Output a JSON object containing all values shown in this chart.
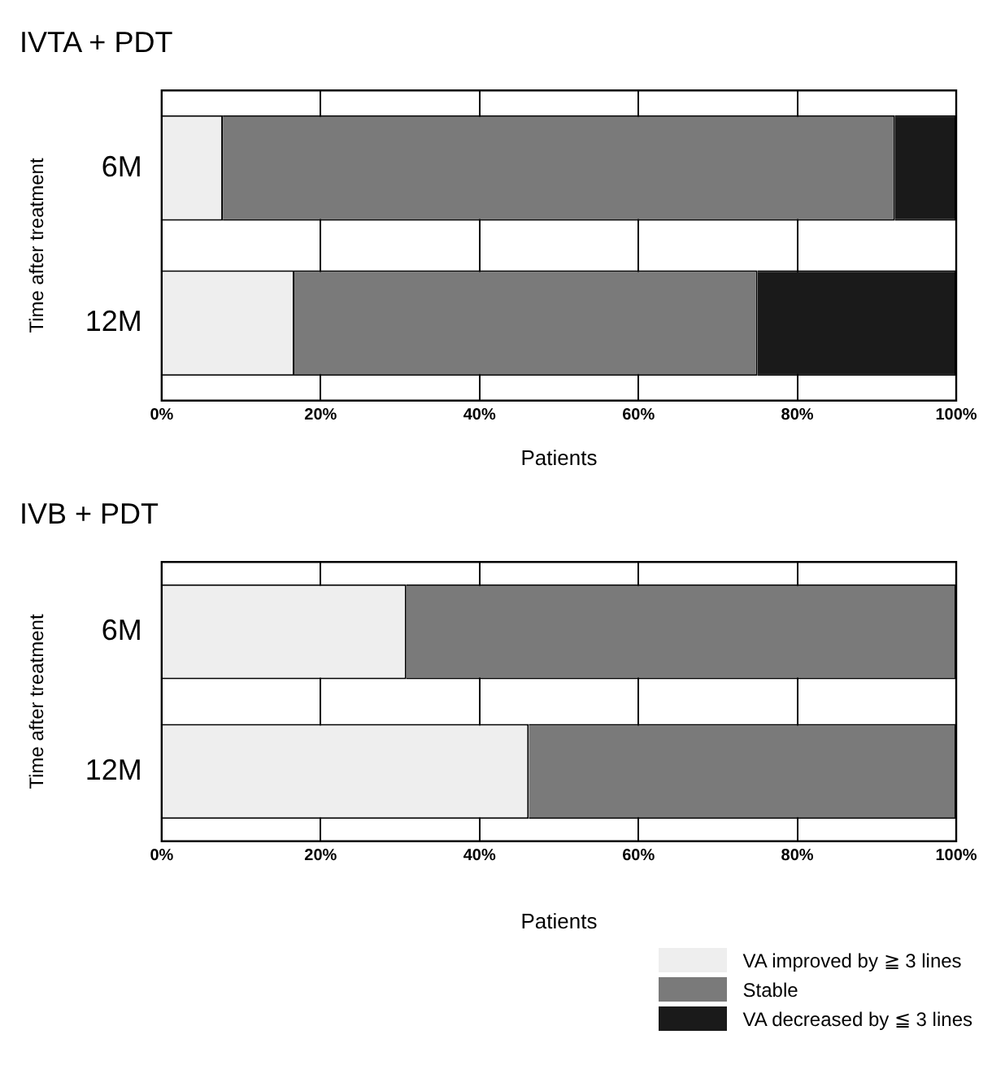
{
  "chart_data": [
    {
      "type": "bar",
      "title": "IVTA + PDT",
      "xlabel": "Patients",
      "ylabel": "Time after treatment",
      "orientation": "horizontal",
      "stacked": true,
      "categories": [
        "6M",
        "12M"
      ],
      "series": [
        {
          "color": "#eeeeee",
          "values": [
            7.7,
            16.7
          ]
        },
        {
          "color": "#7a7a7a",
          "values": [
            84.6,
            58.3
          ]
        },
        {
          "color": "#1a1a1a",
          "values": [
            7.7,
            25.0
          ]
        }
      ],
      "xlim": [
        0,
        100
      ],
      "xticks": [
        {
          "value": 0,
          "label": "0%"
        },
        {
          "value": 20,
          "label": "20%"
        },
        {
          "value": 40,
          "label": "40%"
        },
        {
          "value": 60,
          "label": "60%"
        },
        {
          "value": 80,
          "label": "80%"
        },
        {
          "value": 100,
          "label": "100%"
        }
      ],
      "grid": "x",
      "legend": false
    },
    {
      "type": "bar",
      "title": "IVB + PDT",
      "xlabel": "Patients",
      "ylabel": "Time after treatment",
      "orientation": "horizontal",
      "stacked": true,
      "categories": [
        "6M",
        "12M"
      ],
      "series": [
        {
          "name": "VA improved by ≧ 3 lines",
          "color": "#eeeeee",
          "values": [
            30.8,
            46.2
          ]
        },
        {
          "name": "Stable",
          "color": "#7a7a7a",
          "values": [
            69.2,
            53.8
          ]
        },
        {
          "name": "VA decreased by ≦ 3 lines",
          "color": "#1a1a1a",
          "values": [
            0,
            0
          ]
        }
      ],
      "xlim": [
        0,
        100
      ],
      "xticks": [
        {
          "value": 0,
          "label": "0%"
        },
        {
          "value": 20,
          "label": "20%"
        },
        {
          "value": 40,
          "label": "40%"
        },
        {
          "value": 60,
          "label": "60%"
        },
        {
          "value": 80,
          "label": "80%"
        },
        {
          "value": 100,
          "label": "100%"
        }
      ],
      "grid": "x",
      "legend": "bottom right"
    }
  ]
}
